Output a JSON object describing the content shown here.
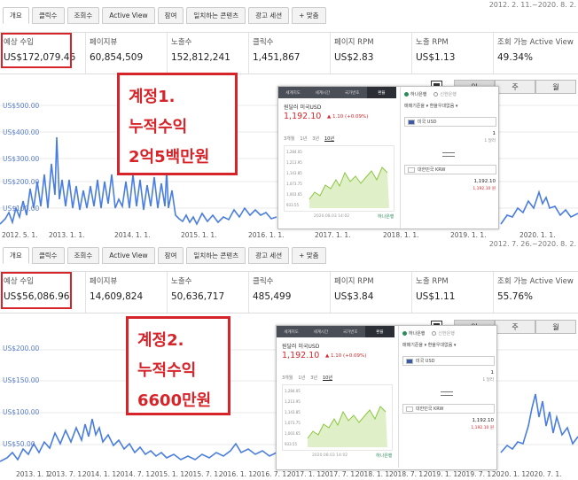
{
  "panels": [
    {
      "date_range": "2012. 2. 11.~2020. 8. 2.",
      "tabs": [
        "개요",
        "클릭수",
        "조회수",
        "Active View",
        "잠여",
        "일치하는 콘텐츠",
        "광고 세션",
        "+  맞춤"
      ],
      "active_tab": "개요",
      "metrics": [
        {
          "label": "예상 수입",
          "value": "US$172,079.46"
        },
        {
          "label": "페이지뷰",
          "value": "60,854,509"
        },
        {
          "label": "노출수",
          "value": "152,812,241"
        },
        {
          "label": "클릭수",
          "value": "1,451,867"
        },
        {
          "label": "페이지 RPM",
          "value": "US$2.83"
        },
        {
          "label": "노출 RPM",
          "value": "US$1.13"
        },
        {
          "label": "조회 가능 Active View",
          "value": "49.34%"
        }
      ],
      "callout": {
        "line1": "계정1.",
        "line2": "누적수익",
        "line3": "2억5백만원"
      },
      "period_buttons": [
        "일",
        "주",
        "월"
      ],
      "y_axis": [
        "US$500.00",
        "US$400.00",
        "US$300.00",
        "US$200.00",
        "US$100.00"
      ],
      "x_axis": [
        "2012. 5. 1.",
        "2013. 1. 1.",
        "2014. 1. 1.",
        "2015. 1. 1.",
        "2016. 1. 1.",
        "2017. 1. 1.",
        "2018. 1. 1.",
        "2019. 1. 1.",
        "2020. 1. 1."
      ]
    },
    {
      "date_range": "2012. 7. 26.~2020. 8. 2.",
      "tabs": [
        "개요",
        "클릭수",
        "조회수",
        "Active View",
        "잠여",
        "일치하는 콘텐츠",
        "광고 세션",
        "+  맞춤"
      ],
      "active_tab": "개요",
      "metrics": [
        {
          "label": "예상 수입",
          "value": "US$56,086.96"
        },
        {
          "label": "페이지뷰",
          "value": "14,609,824"
        },
        {
          "label": "노출수",
          "value": "50,636,717"
        },
        {
          "label": "클릭수",
          "value": "485,499"
        },
        {
          "label": "페이지 RPM",
          "value": "US$3.84"
        },
        {
          "label": "노출 RPM",
          "value": "US$1.11"
        },
        {
          "label": "조회 가능 Active View",
          "value": "55.76%"
        }
      ],
      "callout": {
        "line1": "계정2.",
        "line2": "누적수익",
        "line3": "6600만원"
      },
      "period_buttons": [
        "일",
        "주",
        "월"
      ],
      "y_axis": [
        "US$200.00",
        "US$150.00",
        "US$100.00",
        "US$50.00"
      ],
      "x_axis": [
        "2013. 1. 1.",
        "2013. 7. 1.",
        "2014. 1. 1.",
        "2014. 7. 1.",
        "2015. 1. 1.",
        "2015. 7. 1.",
        "2016. 1. 1.",
        "2016. 7. 1.",
        "2017. 1. 1.",
        "2017. 7. 1.",
        "2018. 1. 1.",
        "2018. 7. 1.",
        "2019. 1. 1.",
        "2019. 7. 1.",
        "2020. 1. 1.",
        "2020. 7. 1."
      ]
    }
  ],
  "fx_widget": {
    "nav": [
      "세계지도",
      "세계시간",
      "국가번호",
      "환율"
    ],
    "title": "원달러 미국USD",
    "rate": "1,192.10",
    "change": "▲ 1.10 (+0.09%)",
    "periods": [
      "3개월",
      "1년",
      "3년",
      "10년"
    ],
    "y_ticks": [
      "1,284.05",
      "1,213.95",
      "1,143.85",
      "1,073.75",
      "1,003.65",
      "933.55"
    ],
    "x_ticks": [
      "2010/01",
      "2012/01",
      "2014/01",
      "2016/01",
      "2018/01",
      "2020/01"
    ],
    "footer": "2020.08.03 14:02",
    "brand": "하나은행",
    "bank_options": [
      "하나은행",
      "신한은행"
    ],
    "rate_type": "매매기준율 ▾   환율우대없음 ▾",
    "from_currency": "미국 USD",
    "from_amount": "1",
    "from_sub": "1 달러",
    "to_currency": "대한민국 KRW",
    "to_amount": "1,192.10",
    "to_sub": "1,192.10 원"
  },
  "colors": {
    "accent_red": "#d6242a",
    "series_blue": "#4a7de0",
    "fx_green": "#8cc63f"
  }
}
